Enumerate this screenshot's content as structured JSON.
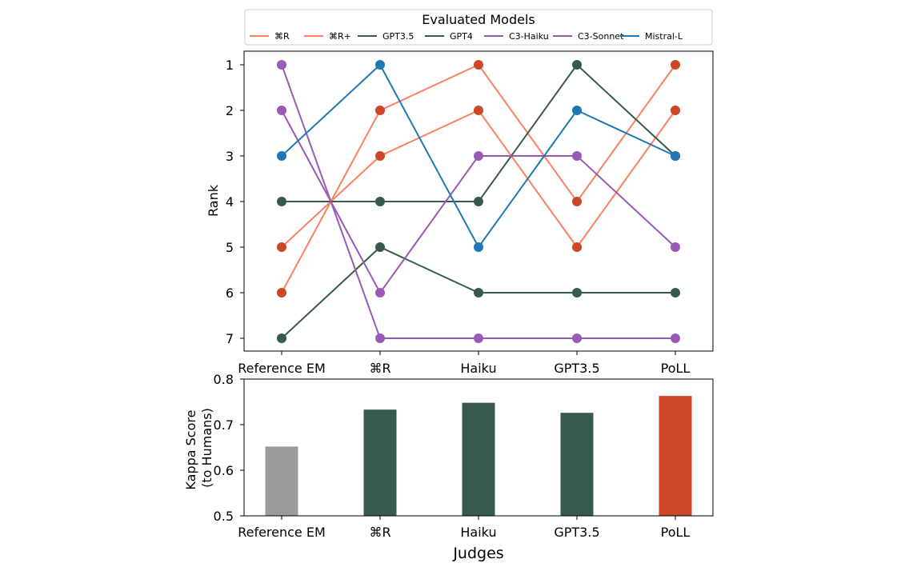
{
  "chart_data": [
    {
      "type": "line",
      "categories": [
        "Reference EM",
        "⌘R",
        "Haiku",
        "GPT3.5",
        "PoLL"
      ],
      "ylabel": "Rank",
      "ylim": [
        7,
        1
      ],
      "yticks": [
        1,
        2,
        3,
        4,
        5,
        6,
        7
      ],
      "y_inverted": true,
      "grid": false,
      "legend": {
        "title": "Evaluated Models",
        "placement": "top, above plot"
      },
      "series": [
        {
          "name": "⌘R",
          "values": [
            5,
            3,
            2,
            5,
            2
          ],
          "line_color": "#fa8060",
          "marker_color": "#cc4628"
        },
        {
          "name": "⌘R+",
          "values": [
            6,
            2,
            1,
            4,
            1
          ],
          "line_color": "#fa8060",
          "marker_color": "#cc4628"
        },
        {
          "name": "GPT3.5",
          "values": [
            7,
            5,
            6,
            6,
            6
          ],
          "line_color": "#365a4c",
          "marker_color": "#365a4c"
        },
        {
          "name": "GPT4",
          "values": [
            4,
            4,
            4,
            1,
            3
          ],
          "line_color": "#365a4c",
          "marker_color": "#365a4c"
        },
        {
          "name": "C3-Haiku",
          "values": [
            1,
            7,
            7,
            7,
            7
          ],
          "line_color": "#9b59b6",
          "marker_color": "#9b59b6"
        },
        {
          "name": "C3-Sonnet",
          "values": [
            2,
            6,
            3,
            3,
            5
          ],
          "line_color": "#9b59b6",
          "marker_color": "#9b59b6"
        },
        {
          "name": "Mistral-L",
          "values": [
            3,
            1,
            5,
            2,
            3
          ],
          "line_color": "#1f77b4",
          "marker_color": "#1f77b4"
        }
      ]
    },
    {
      "type": "bar",
      "categories": [
        "Reference EM",
        "⌘R",
        "Haiku",
        "GPT3.5",
        "PoLL"
      ],
      "values": [
        0.652,
        0.733,
        0.748,
        0.726,
        0.763
      ],
      "bar_colors": [
        "#9b9b9b",
        "#365a4c",
        "#365a4c",
        "#365a4c",
        "#cc4628"
      ],
      "xlabel": "Judges",
      "ylabel": "Kappa Score\n(to Humans)",
      "ylim": [
        0.5,
        0.8
      ],
      "yticks": [
        "0.5",
        "0.6",
        "0.7",
        "0.8"
      ],
      "grid": false
    }
  ]
}
